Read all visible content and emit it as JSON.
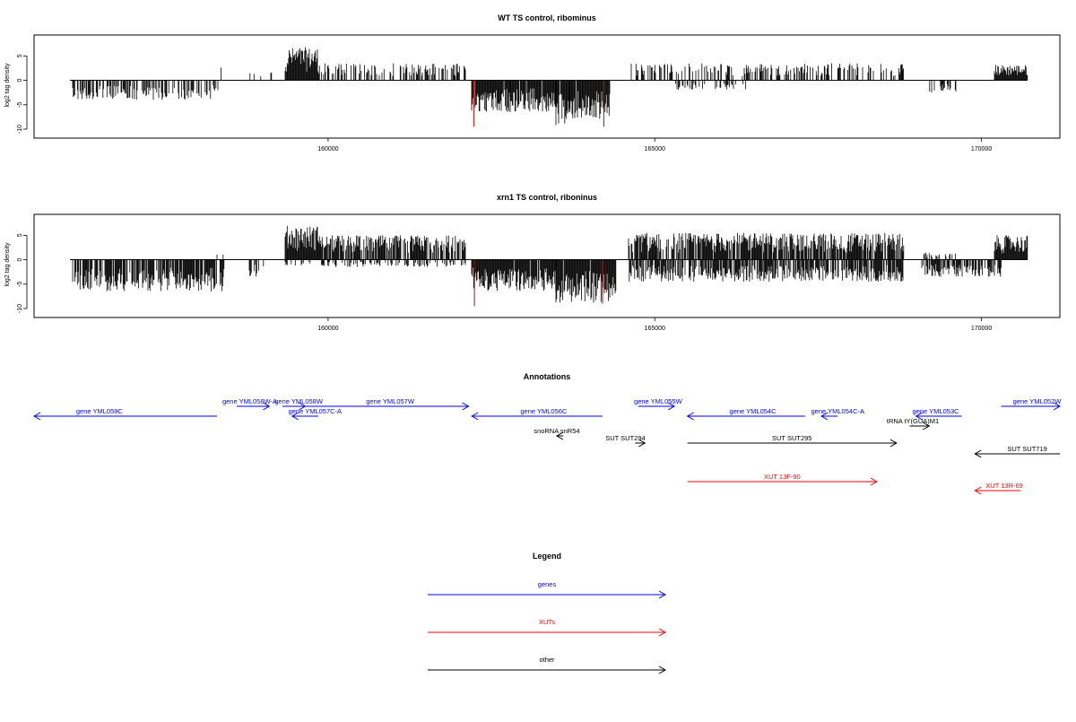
{
  "colors": {
    "gene": "#0000ff",
    "xut": "#ff0000",
    "other": "#000000",
    "density": "#000000",
    "highlight": "#cc0000"
  },
  "chart_data": [
    {
      "type": "bar",
      "title": "WT TS control, ribominus",
      "ylabel": "log2 tag density",
      "xlim": [
        155500,
        171200
      ],
      "ylim": [
        -10,
        8
      ],
      "xticks": [
        160000,
        165000,
        170000
      ],
      "yticks": [
        -10,
        -5,
        0,
        5
      ],
      "series": [
        {
          "strand": "+",
          "segments": [
            {
              "start": 158300,
              "end": 158400,
              "max": 2.8,
              "density": 0.2
            },
            {
              "start": 158800,
              "end": 159200,
              "max": 2.0,
              "density": 0.2
            },
            {
              "start": 159350,
              "end": 159850,
              "max": 6.8,
              "density": 1.0
            },
            {
              "start": 159850,
              "end": 162100,
              "max": 3.5,
              "density": 0.45
            },
            {
              "start": 164650,
              "end": 168800,
              "max": 3.5,
              "density": 0.4
            },
            {
              "start": 168750,
              "end": 168800,
              "max": 3.5,
              "density": 1.0
            },
            {
              "start": 170200,
              "end": 170700,
              "max": 3.2,
              "density": 1.0
            }
          ]
        },
        {
          "strand": "-",
          "segments": [
            {
              "start": 156100,
              "end": 158300,
              "max": 4.0,
              "density": 0.55
            },
            {
              "start": 162200,
              "end": 162800,
              "max": 6.5,
              "density": 0.95
            },
            {
              "start": 162800,
              "end": 163500,
              "max": 6.5,
              "density": 0.95
            },
            {
              "start": 163500,
              "end": 163700,
              "max": 9.5,
              "density": 0.9
            },
            {
              "start": 163700,
              "end": 164300,
              "max": 8.0,
              "density": 0.95
            },
            {
              "start": 165300,
              "end": 166400,
              "max": 2.0,
              "density": 0.3
            },
            {
              "start": 169200,
              "end": 169600,
              "max": 2.5,
              "density": 0.4
            }
          ]
        }
      ],
      "highlights": [
        {
          "x": 162230,
          "y": -9.5
        },
        {
          "x": 164220,
          "y": -9.5
        }
      ]
    },
    {
      "type": "bar",
      "title": "xrn1 TS control, riboninus",
      "ylabel": "log2 tag density",
      "xlim": [
        155500,
        171200
      ],
      "ylim": [
        -10,
        8
      ],
      "xticks": [
        160000,
        165000,
        170000
      ],
      "yticks": [
        -10,
        -5,
        0,
        5
      ],
      "series": [
        {
          "strand": "+",
          "segments": [
            {
              "start": 158300,
              "end": 158400,
              "max": 1.5,
              "density": 0.2
            },
            {
              "start": 159350,
              "end": 159850,
              "max": 7.0,
              "density": 1.0
            },
            {
              "start": 159850,
              "end": 162100,
              "max": 5.0,
              "density": 0.8
            },
            {
              "start": 164600,
              "end": 168800,
              "max": 5.5,
              "density": 0.8
            },
            {
              "start": 169100,
              "end": 169600,
              "max": 1.5,
              "density": 0.3
            },
            {
              "start": 170200,
              "end": 170700,
              "max": 5.0,
              "density": 1.0
            }
          ]
        },
        {
          "strand": "-",
          "segments": [
            {
              "start": 156100,
              "end": 158400,
              "max": 6.5,
              "density": 0.8
            },
            {
              "start": 158800,
              "end": 159000,
              "max": 3.5,
              "density": 0.4
            },
            {
              "start": 159350,
              "end": 162100,
              "max": 1.5,
              "density": 0.3
            },
            {
              "start": 162200,
              "end": 163500,
              "max": 6.5,
              "density": 0.95
            },
            {
              "start": 163500,
              "end": 164400,
              "max": 9.0,
              "density": 0.95
            },
            {
              "start": 164600,
              "end": 168800,
              "max": 4.5,
              "density": 0.75
            },
            {
              "start": 169100,
              "end": 170300,
              "max": 3.5,
              "density": 0.6
            }
          ]
        }
      ],
      "highlights": [
        {
          "x": 162240,
          "y": -9.5
        },
        {
          "x": 164200,
          "y": -9.0
        }
      ]
    }
  ],
  "annotations": {
    "title": "Annotations",
    "features": [
      {
        "label": "gene YML059C",
        "start": 158300,
        "end": 155500,
        "row": 1,
        "kind": "gene",
        "label_pos": 156500
      },
      {
        "label": "gene YML058W-A",
        "start": 158600,
        "end": 159100,
        "row": 0,
        "kind": "gene",
        "label_pos": 158800
      },
      {
        "label": "gene YML058W",
        "start": 159300,
        "end": 159650,
        "row": 0,
        "kind": "gene",
        "label_pos": 159550
      },
      {
        "label": "gene YML057C-A",
        "start": 159850,
        "end": 159450,
        "row": 1,
        "kind": "gene",
        "label_pos": 159800
      },
      {
        "label": "gene YML057W",
        "start": 159650,
        "end": 162150,
        "row": 0,
        "kind": "gene",
        "label_pos": 160950
      },
      {
        "label": "gene YML056C",
        "start": 164200,
        "end": 162200,
        "row": 1,
        "kind": "gene",
        "label_pos": 163300
      },
      {
        "label": "gene YML055W",
        "start": 164750,
        "end": 165300,
        "row": 0,
        "kind": "gene",
        "label_pos": 165050
      },
      {
        "label": "gene YML054C",
        "start": 167300,
        "end": 165500,
        "row": 1,
        "kind": "gene",
        "label_pos": 166500
      },
      {
        "label": "gene YML054C-A",
        "start": 167800,
        "end": 167550,
        "row": 1,
        "kind": "gene",
        "label_pos": 167800
      },
      {
        "label": "gene YML053C",
        "start": 169700,
        "end": 169000,
        "row": 1,
        "kind": "gene",
        "label_pos": 169300
      },
      {
        "label": "gene YML052W",
        "start": 170300,
        "end": 171200,
        "row": 0,
        "kind": "gene",
        "label_pos": 170850
      },
      {
        "label": "tRNA tY(GUA)M1",
        "start": 168900,
        "end": 169200,
        "row": 2,
        "kind": "other",
        "label_pos": 168950
      },
      {
        "label": "snoRNA snR54",
        "start": 163600,
        "end": 163500,
        "row": 3,
        "kind": "other",
        "label_pos": 163500
      },
      {
        "label": "SUT SUT294",
        "start": 164700,
        "end": 164850,
        "row": 4,
        "kind": "other",
        "label_pos": 164550
      },
      {
        "label": "SUT SUT295",
        "start": 165500,
        "end": 168700,
        "row": 4,
        "kind": "other",
        "label_pos": 167100
      },
      {
        "label": "SUT SUT719",
        "start": 171200,
        "end": 169900,
        "row": 5,
        "kind": "other",
        "label_pos": 170700
      },
      {
        "label": "XUT 13F-90",
        "start": 165500,
        "end": 168400,
        "row": 6,
        "kind": "xut",
        "label_pos": 166950
      },
      {
        "label": "XUT 13R-69",
        "start": 170600,
        "end": 169900,
        "row": 7,
        "kind": "xut",
        "label_pos": 170350
      }
    ]
  },
  "legend": {
    "title": "Legend",
    "items": [
      {
        "label": "genes",
        "kind": "gene"
      },
      {
        "label": "XUTs",
        "kind": "xut"
      },
      {
        "label": "other",
        "kind": "other"
      }
    ]
  }
}
